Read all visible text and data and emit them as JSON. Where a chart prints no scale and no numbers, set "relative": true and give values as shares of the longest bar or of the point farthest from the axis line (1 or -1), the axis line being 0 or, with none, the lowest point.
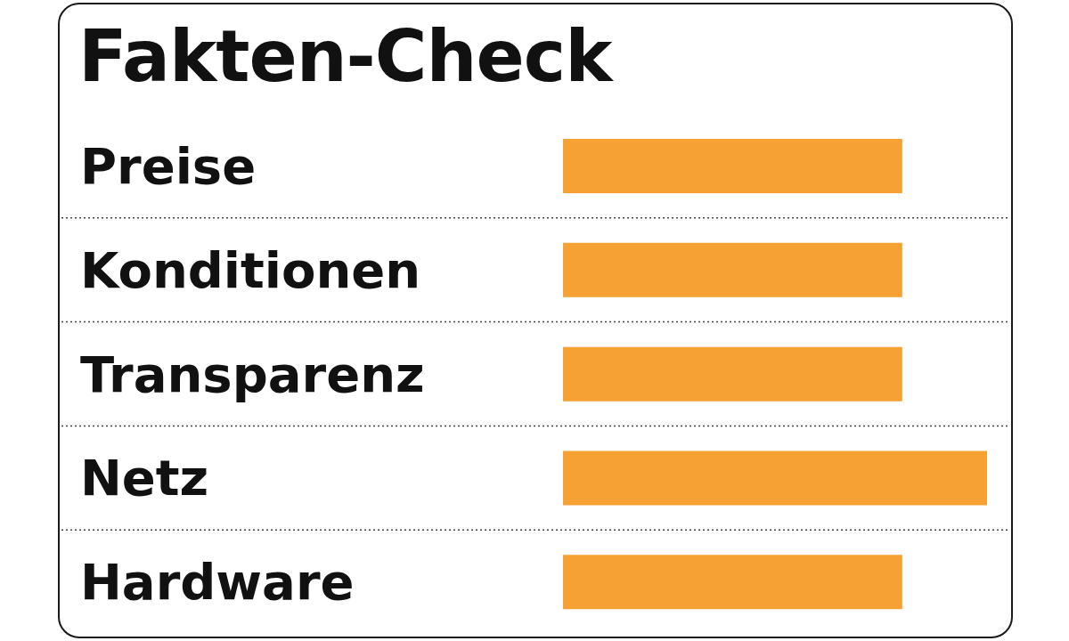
{
  "chart_data": {
    "type": "bar",
    "orientation": "horizontal",
    "relative": true,
    "title": "Fakten-Check",
    "categories": [
      "Preise",
      "Konditionen",
      "Transparenz",
      "Netz",
      "Hardware"
    ],
    "values": [
      0.8,
      0.8,
      0.8,
      1,
      0.8
    ],
    "color": "#f5a133",
    "grid": "y"
  }
}
